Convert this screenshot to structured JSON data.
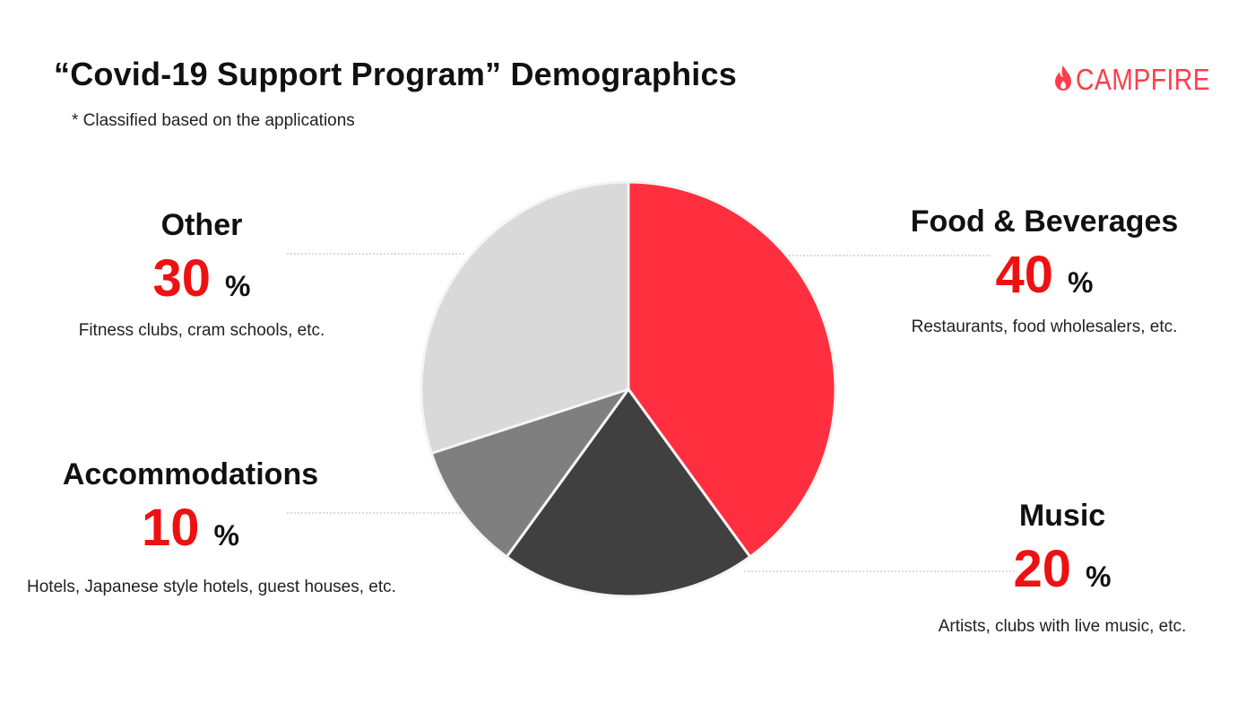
{
  "title": "“Covid-19 Support Program” Demographics",
  "subtitle": "* Classified based on the applications",
  "logo": {
    "text": "CAMPFIRE",
    "icon": "flame-icon",
    "color": "#ff3d4a"
  },
  "percent_symbol": "%",
  "chart_data": {
    "type": "pie",
    "start_angle_deg": 0,
    "direction": "clockwise",
    "slices": [
      {
        "name": "Food & Beverages",
        "value": 40,
        "percent_label": "40",
        "description": "Restaurants, food wholesalers, etc.",
        "color": "#ff2f40"
      },
      {
        "name": "Music",
        "value": 20,
        "percent_label": "20",
        "description": "Artists, clubs with live music, etc.",
        "color": "#404040"
      },
      {
        "name": "Accommodations",
        "value": 10,
        "percent_label": "10",
        "description": "Hotels, Japanese style hotels, guest houses, etc.",
        "color": "#7f7f7f"
      },
      {
        "name": "Other",
        "value": 30,
        "percent_label": "30",
        "description": "Fitness clubs, cram schools, etc.",
        "color": "#d9d9d9"
      }
    ],
    "highlight_color": "#ee1111"
  }
}
